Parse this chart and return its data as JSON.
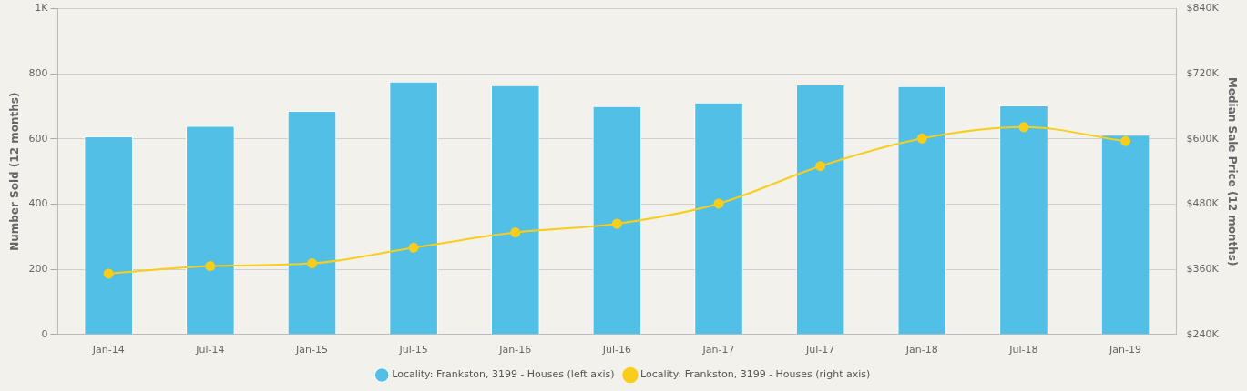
{
  "chart_data": {
    "type": "bar",
    "categories": [
      "Jan-14",
      "Jul-14",
      "Jan-15",
      "Jul-15",
      "Jan-16",
      "Jul-16",
      "Jan-17",
      "Jul-17",
      "Jan-18",
      "Jul-18",
      "Jan-19"
    ],
    "ylabel": "Number Sold (12 months)",
    "y2label": "Median Sale Price (12 months)",
    "series": [
      {
        "name": "Locality: Frankston, 3199 - Houses (left axis)",
        "color": "#52c0e6",
        "values": [
          608,
          640,
          686,
          776,
          765,
          701,
          712,
          767,
          762,
          703,
          613
        ]
      },
      {
        "name": "Locality: Frankston, 3199 - Houses (right axis)",
        "type": "line",
        "axis": "y2",
        "color": "#f9cd1b",
        "values": [
          352000,
          366000,
          371000,
          400000,
          428000,
          444000,
          481000,
          550000,
          601000,
          622000,
          596000
        ]
      }
    ],
    "ylim": [
      0,
      1000
    ],
    "yticks": [
      0,
      200,
      400,
      600,
      800,
      {
        "value": 1000,
        "label": "1K"
      }
    ],
    "y2lim": [
      240000,
      840000
    ],
    "y2ticks": [
      {
        "value": 240000,
        "label": "$240K"
      },
      {
        "value": 360000,
        "label": "$360K"
      },
      {
        "value": 480000,
        "label": "$480K"
      },
      {
        "value": 600000,
        "label": "$600K"
      },
      {
        "value": 720000,
        "label": "$720K"
      },
      {
        "value": 840000,
        "label": "$840K"
      }
    ],
    "grid": "y",
    "legend": "bottom",
    "marker": "circle"
  }
}
